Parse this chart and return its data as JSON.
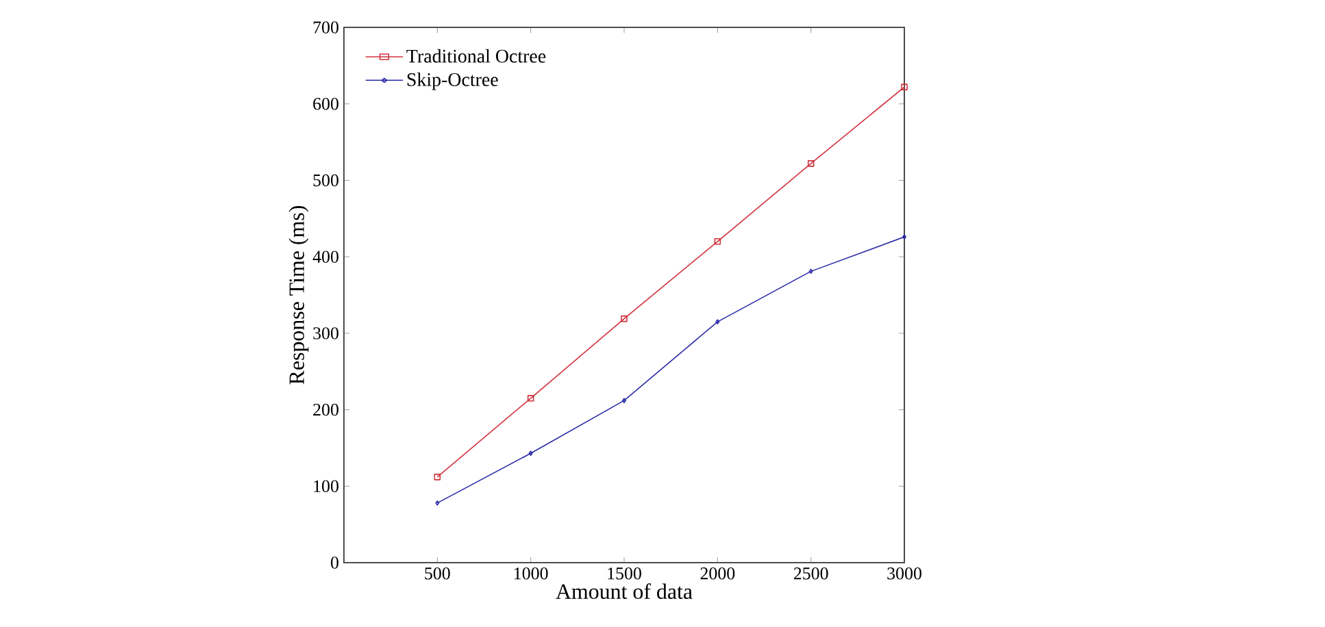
{
  "chart_data": {
    "type": "line",
    "xlabel": "Amount of data",
    "ylabel": "Response Time (ms)",
    "x": [
      500,
      1000,
      1500,
      2000,
      2500,
      3000
    ],
    "series": [
      {
        "name": "Traditional Octree",
        "color": "#d0303c",
        "marker": "square",
        "values": [
          112,
          215,
          319,
          420,
          522,
          622
        ]
      },
      {
        "name": "Skip-Octree",
        "color": "#2a2aa8",
        "marker": "diamond",
        "values": [
          78,
          143,
          212,
          315,
          381,
          426
        ]
      }
    ],
    "xlim": [
      0,
      3000
    ],
    "ylim": [
      0,
      700
    ],
    "xticks": [
      500,
      1000,
      1500,
      2000,
      2500,
      3000
    ],
    "yticks": [
      0,
      100,
      200,
      300,
      400,
      500,
      600,
      700
    ],
    "grid": false,
    "legend": "top left",
    "line_style": "solid"
  }
}
